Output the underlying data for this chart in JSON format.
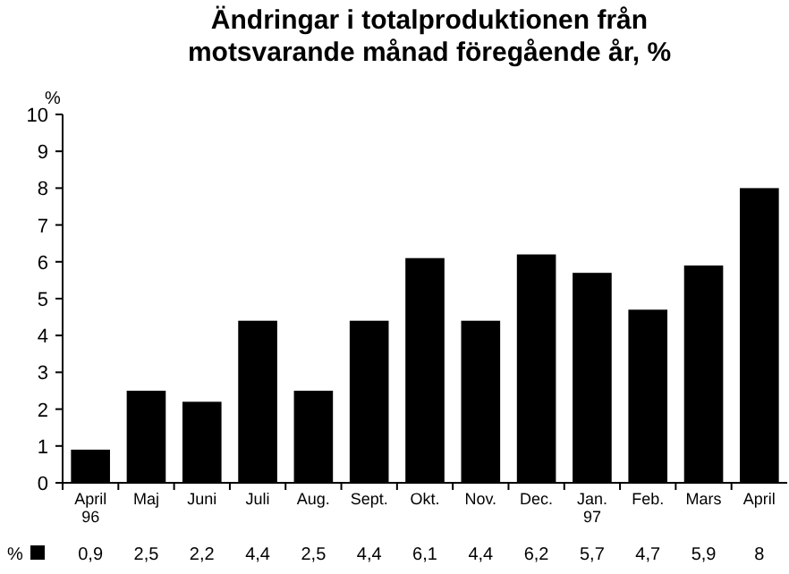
{
  "chart_data": {
    "type": "bar",
    "title": "Ändringar i totalproduktionen från\nmotsvarande månad föregående år, %",
    "ylabel": "%",
    "categories": [
      "April\n96",
      "Maj",
      "Juni",
      "Juli",
      "Aug.",
      "Sept.",
      "Okt.",
      "Nov.",
      "Dec.",
      "Jan.\n97",
      "Feb.",
      "Mars",
      "April"
    ],
    "series": [
      {
        "name": "%",
        "color": "#000000",
        "values": [
          0.9,
          2.5,
          2.2,
          4.4,
          2.5,
          4.4,
          6.1,
          4.4,
          6.2,
          5.7,
          4.7,
          5.9,
          8
        ],
        "value_labels": [
          "0,9",
          "2,5",
          "2,2",
          "4,4",
          "2,5",
          "4,4",
          "6,1",
          "4,4",
          "6,2",
          "5,7",
          "4,7",
          "5,9",
          "8"
        ]
      }
    ],
    "ylim": [
      0,
      10
    ],
    "yticks": [
      0,
      1,
      2,
      3,
      4,
      5,
      6,
      7,
      8,
      9,
      10
    ],
    "grid": false,
    "legend": "bottom left"
  }
}
